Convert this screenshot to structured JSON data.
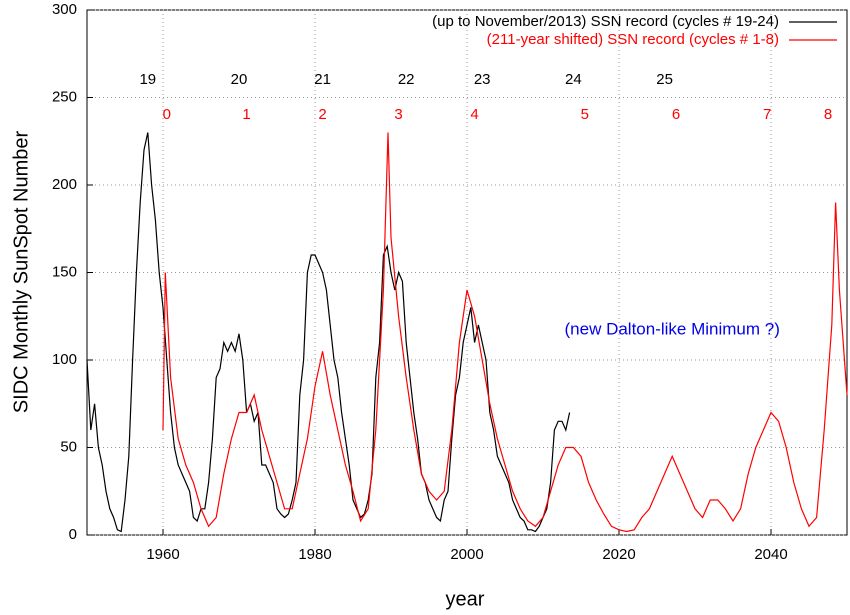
{
  "chart_data": {
    "type": "line",
    "xlabel": "year",
    "ylabel": "SIDC Monthly SunSpot Number",
    "xlim": [
      1950,
      2050
    ],
    "xticks": [
      1960,
      1980,
      2000,
      2020,
      2040
    ],
    "ylim": [
      0,
      300
    ],
    "yticks": [
      0,
      50,
      100,
      150,
      200,
      250,
      300
    ],
    "grid": true,
    "legend": "top-right",
    "annotations": [
      "19",
      "20",
      "21",
      "22",
      "23",
      "24",
      "25",
      "0",
      "1",
      "2",
      "3",
      "4",
      "5",
      "6",
      "7",
      "8",
      "(new Dalton-like Minimum ?)"
    ],
    "series": [
      {
        "name": "(up to November/2013) SSN record (cycles # 19-24)",
        "color": "#000000",
        "x": [
          1950,
          1950.5,
          1951,
          1951.5,
          1952,
          1952.5,
          1953,
          1953.5,
          1954,
          1954.5,
          1955,
          1955.5,
          1956,
          1956.5,
          1957,
          1957.5,
          1958,
          1958.5,
          1959,
          1959.5,
          1960,
          1960.5,
          1961,
          1961.5,
          1962,
          1962.5,
          1963,
          1963.5,
          1964,
          1964.5,
          1965,
          1965.5,
          1966,
          1966.5,
          1967,
          1967.5,
          1968,
          1968.5,
          1969,
          1969.5,
          1970,
          1970.5,
          1971,
          1971.5,
          1972,
          1972.5,
          1973,
          1973.5,
          1974,
          1974.5,
          1975,
          1975.5,
          1976,
          1976.5,
          1977,
          1977.5,
          1978,
          1978.5,
          1979,
          1979.5,
          1980,
          1980.5,
          1981,
          1981.5,
          1982,
          1982.5,
          1983,
          1983.5,
          1984,
          1984.5,
          1985,
          1985.5,
          1986,
          1986.5,
          1987,
          1987.5,
          1988,
          1988.5,
          1989,
          1989.5,
          1990,
          1990.5,
          1991,
          1991.5,
          1992,
          1992.5,
          1993,
          1993.5,
          1994,
          1994.5,
          1995,
          1995.5,
          1996,
          1996.5,
          1997,
          1997.5,
          1998,
          1998.5,
          1999,
          1999.5,
          2000,
          2000.5,
          2001,
          2001.5,
          2002,
          2002.5,
          2003,
          2003.5,
          2004,
          2004.5,
          2005,
          2005.5,
          2006,
          2006.5,
          2007,
          2007.5,
          2008,
          2008.5,
          2009,
          2009.5,
          2010,
          2010.5,
          2011,
          2011.5,
          2012,
          2012.5,
          2013,
          2013.5
        ],
        "values": [
          100,
          60,
          75,
          50,
          40,
          25,
          15,
          10,
          3,
          2,
          20,
          45,
          100,
          150,
          190,
          220,
          230,
          200,
          180,
          150,
          130,
          100,
          70,
          50,
          40,
          35,
          30,
          25,
          10,
          8,
          15,
          15,
          30,
          55,
          90,
          95,
          110,
          105,
          110,
          105,
          115,
          100,
          70,
          75,
          65,
          70,
          40,
          40,
          35,
          30,
          15,
          12,
          10,
          12,
          20,
          30,
          80,
          100,
          150,
          160,
          160,
          155,
          150,
          140,
          120,
          100,
          90,
          70,
          55,
          40,
          20,
          15,
          10,
          12,
          20,
          35,
          90,
          110,
          160,
          165,
          150,
          140,
          150,
          145,
          110,
          90,
          70,
          55,
          35,
          30,
          20,
          15,
          10,
          8,
          20,
          25,
          55,
          80,
          90,
          110,
          120,
          130,
          110,
          120,
          110,
          100,
          70,
          60,
          45,
          40,
          35,
          30,
          20,
          15,
          10,
          8,
          3,
          3,
          2,
          5,
          10,
          15,
          30,
          60,
          65,
          65,
          60,
          70
        ]
      },
      {
        "name": "(211-year shifted) SSN record (cycles # 1-8)",
        "color": "#ff0000",
        "x": [
          1960,
          1960.3,
          1961,
          1962,
          1963,
          1964,
          1965,
          1966,
          1967,
          1968,
          1969,
          1970,
          1971,
          1972,
          1973,
          1974,
          1975,
          1976,
          1977,
          1978,
          1979,
          1980,
          1981,
          1982,
          1983,
          1984,
          1985,
          1986,
          1987,
          1988,
          1989,
          1989.6,
          1990,
          1991,
          1992,
          1993,
          1994,
          1995,
          1996,
          1997,
          1998,
          1999,
          2000,
          2001,
          2002,
          2003,
          2004,
          2005,
          2006,
          2007,
          2008,
          2009,
          2010,
          2011,
          2012,
          2013,
          2014,
          2015,
          2016,
          2017,
          2018,
          2019,
          2020,
          2021,
          2022,
          2023,
          2024,
          2025,
          2026,
          2027,
          2028,
          2029,
          2030,
          2031,
          2032,
          2033,
          2034,
          2035,
          2036,
          2037,
          2038,
          2039,
          2040,
          2041,
          2042,
          2043,
          2044,
          2045,
          2046,
          2047,
          2048,
          2048.5,
          2049,
          2050
        ],
        "values": [
          60,
          150,
          90,
          55,
          40,
          30,
          15,
          5,
          10,
          35,
          55,
          70,
          70,
          80,
          60,
          45,
          30,
          15,
          15,
          35,
          55,
          85,
          105,
          80,
          60,
          40,
          25,
          8,
          15,
          60,
          140,
          230,
          170,
          125,
          90,
          60,
          35,
          25,
          20,
          25,
          60,
          110,
          140,
          125,
          100,
          75,
          55,
          40,
          25,
          15,
          8,
          5,
          10,
          25,
          40,
          50,
          50,
          45,
          30,
          20,
          12,
          5,
          3,
          2,
          3,
          10,
          15,
          25,
          35,
          45,
          35,
          25,
          15,
          10,
          20,
          20,
          15,
          8,
          15,
          35,
          50,
          60,
          70,
          65,
          50,
          30,
          15,
          5,
          10,
          60,
          120,
          190,
          140,
          80
        ]
      }
    ]
  }
}
